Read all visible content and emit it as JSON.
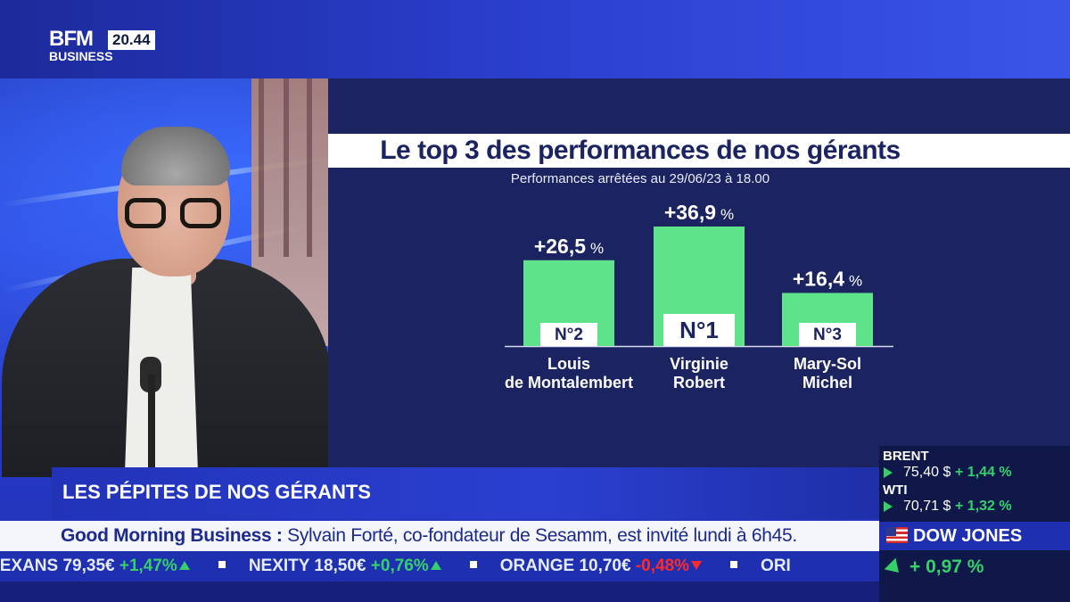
{
  "header": {
    "logo_top": "BFM",
    "logo_bottom": "BUSINESS",
    "clock": "20.44"
  },
  "chart_data": {
    "type": "bar",
    "title": "Le top 3 des performances de nos gérants",
    "subtitle": "Performances arrêtées au 29/06/23 à 18.00",
    "categories": [
      "Louis de Montalembert",
      "Virginie Robert",
      "Mary-Sol Michel"
    ],
    "category_lines": [
      [
        "Louis",
        "de Montalembert"
      ],
      [
        "Virginie",
        "Robert"
      ],
      [
        "Mary-Sol",
        "Michel"
      ]
    ],
    "values": [
      26.5,
      36.9,
      16.4
    ],
    "value_labels": [
      "+26,5",
      "+36,9",
      "+16,4"
    ],
    "unit": "%",
    "ranks": [
      "N°2",
      "N°1",
      "N°3"
    ],
    "ylim": [
      0,
      36.9
    ],
    "bar_color": "#5ee38a",
    "grid": false
  },
  "program": {
    "topic": "LES PÉPITES DE NOS GÉRANTS",
    "show_name": "Good Morning Business :",
    "headline": " Sylvain Forté, co-fondateur de Sesamm, est invité lundi à 6h45."
  },
  "ticker": [
    {
      "name": "NEXANS",
      "price": "79,35€",
      "change": "+1,47%",
      "direction": "up"
    },
    {
      "name": "NEXITY",
      "price": "18,50€",
      "change": "+0,76%",
      "direction": "up"
    },
    {
      "name": "ORANGE",
      "price": "10,70€",
      "change": "-0,48%",
      "direction": "down"
    },
    {
      "name": "ORI",
      "price": "",
      "change": "",
      "direction": ""
    }
  ],
  "markets": {
    "brent": {
      "name": "BRENT",
      "price": "75,40 $",
      "change": "+ 1,44 %"
    },
    "wti": {
      "name": "WTI",
      "price": "70,71 $",
      "change": "+ 1,32 %"
    },
    "dow": {
      "name": "DOW JONES",
      "change": "+ 0,97 %"
    }
  },
  "colors": {
    "panel": "#1b2360",
    "accent_green": "#35d06a",
    "ticker_blue": "#1e2fb0",
    "down_red": "#ff2a2a"
  }
}
